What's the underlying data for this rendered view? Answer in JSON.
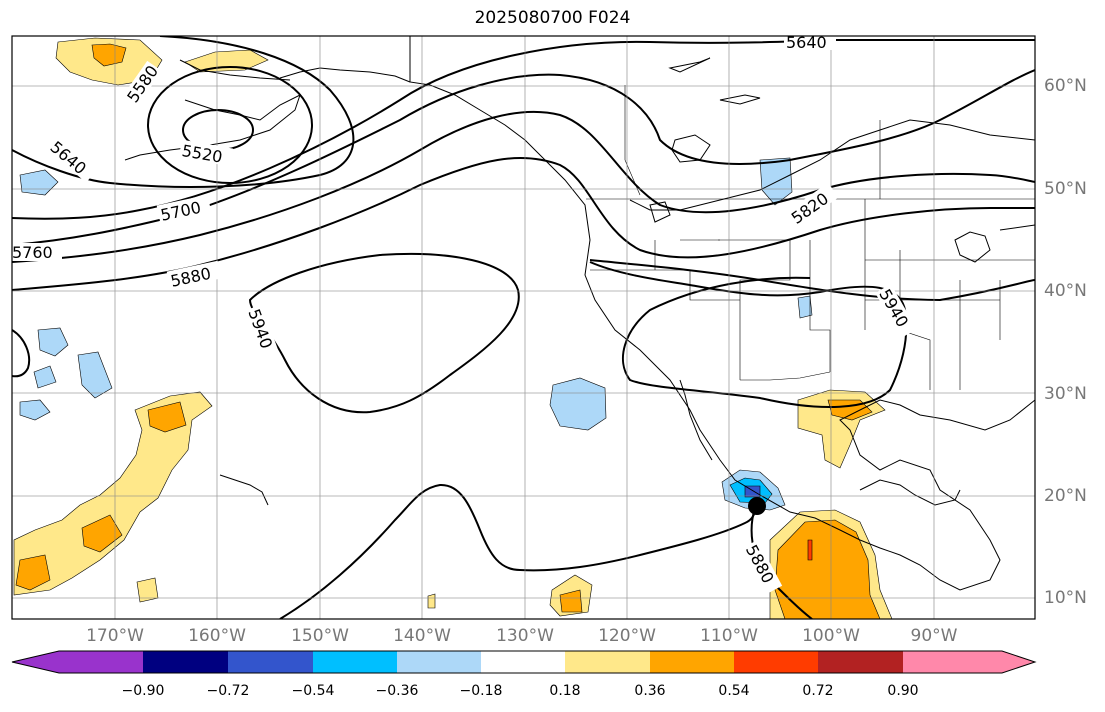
{
  "title": "2025080700 F024",
  "lat_labels": [
    "60°N",
    "50°N",
    "40°N",
    "30°N",
    "20°N",
    "10°N"
  ],
  "lon_labels": [
    "170°W",
    "160°W",
    "150°W",
    "140°W",
    "130°W",
    "120°W",
    "110°W",
    "100°W",
    "90°W"
  ],
  "contour_labels": [
    "5640",
    "5580",
    "5520",
    "5640",
    "5700",
    "5760",
    "5880",
    "5940",
    "5820",
    "5940",
    "5880"
  ],
  "colorbar": {
    "tick_labels": [
      "−0.90",
      "−0.72",
      "−0.54",
      "−0.36",
      "−0.18",
      "0.18",
      "0.36",
      "0.54",
      "0.72",
      "0.90"
    ],
    "colors": [
      "#9933cc",
      "#000080",
      "#3355cc",
      "#00bfff",
      "#add8f8",
      "#ffffff",
      "#ffe88a",
      "#ffa500",
      "#ff3c00",
      "#b22222",
      "#ff88aa"
    ]
  },
  "marker": {
    "name": "storm-center",
    "lat": 19.0,
    "lon": -107.3
  }
}
